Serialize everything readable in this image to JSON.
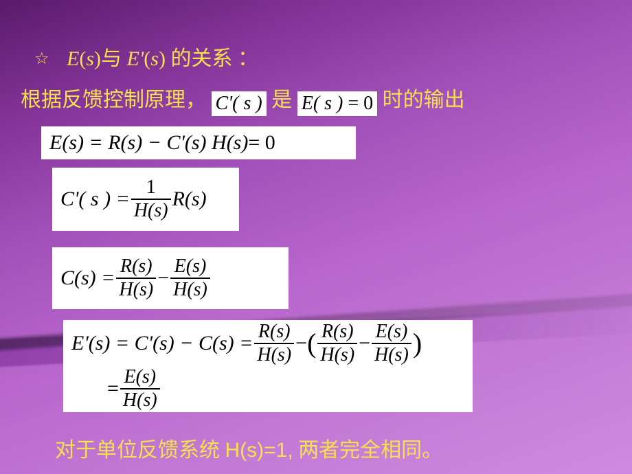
{
  "palette": {
    "bg_grad_start": "#5a1a6a",
    "bg_grad_mid": "#a050b8",
    "bg_grad_end": "#d08ae0",
    "text_accent": "#f5e050",
    "math_bg": "#ffffff",
    "math_text": "#000000"
  },
  "typography": {
    "body_font": "SimSun / Songti",
    "math_font": "Times New Roman",
    "title_size_pt": 30,
    "math_size_pt": 30
  },
  "heading": {
    "star": "☆",
    "pre_it1": "E",
    "paren1_open": "(",
    "s1": "s",
    "paren1_close": ")",
    "mid": "与 ",
    "pre_it2": "E'",
    "paren2_open": "(",
    "s2": "s",
    "paren2_close": ")",
    "tail": " 的关系 ："
  },
  "premise": {
    "lead": "根据反馈控制原理，",
    "snippet1": "C'( s )",
    "mid": "是",
    "snippet2a": "E( s )",
    "snippet2b": "  =  0",
    "tail": "时的输出"
  },
  "eq1": {
    "lhs": "E(s) =  R(s)  −  C'(s) H(s)",
    "rhs": "  =  0"
  },
  "eq2": {
    "lhs": "C'( s )  = ",
    "frac_num": "1",
    "frac_den": "H(s)",
    "tail": " R(s)"
  },
  "eq3": {
    "lhs": "C(s) = ",
    "f1_num": "R(s)",
    "f1_den": "H(s)",
    "minus": " − ",
    "f2_num": "E(s)",
    "f2_den": "H(s)"
  },
  "eq4": {
    "line1_lhs": "E'(s) = C'(s)  −  C(s) = ",
    "a_num": "R(s)",
    "a_den": "H(s)",
    "minus": " − ",
    "paren_open": "(",
    "b_num": "R(s)",
    "b_den": "H(s)",
    "inner_minus": " − ",
    "c_num": "E(s)",
    "c_den": "H(s)",
    "paren_close": ")",
    "line2_prefix": "= ",
    "d_num": "E(s)",
    "d_den": "H(s)"
  },
  "conclusion": {
    "pre": "对于单位反馈系统 ",
    "sym": "H(s)=1,",
    "post": " 两者完全相同。"
  }
}
